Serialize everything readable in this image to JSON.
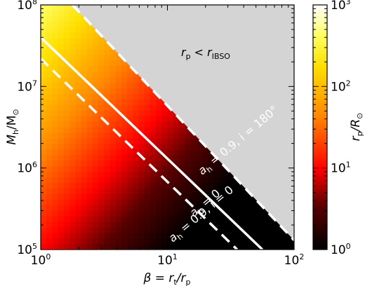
{
  "chart_data": {
    "type": "heatmap",
    "title": "",
    "x_axis": {
      "label_parts": [
        "β = r",
        "t",
        "/r",
        "p"
      ],
      "scale": "log",
      "range": [
        1,
        100
      ],
      "major_ticks": [
        {
          "value": 1,
          "base": "10",
          "exp": "0"
        },
        {
          "value": 10,
          "base": "10",
          "exp": "1"
        },
        {
          "value": 100,
          "base": "10",
          "exp": "2"
        }
      ]
    },
    "y_axis": {
      "label_parts": [
        "M",
        "h",
        "/M",
        "⊙"
      ],
      "scale": "log",
      "range": [
        100000,
        100000000
      ],
      "major_ticks": [
        {
          "value": 100000,
          "base": "10",
          "exp": "5"
        },
        {
          "value": 1000000,
          "base": "10",
          "exp": "6"
        },
        {
          "value": 10000000,
          "base": "10",
          "exp": "7"
        },
        {
          "value": 100000000,
          "base": "10",
          "exp": "8"
        }
      ]
    },
    "colorbar": {
      "label_parts": [
        "r",
        "p",
        "/R",
        "⊙"
      ],
      "scale": "log",
      "range": [
        1,
        1000
      ],
      "colormap": "hot",
      "major_ticks": [
        {
          "value": 1,
          "base": "10",
          "exp": "0"
        },
        {
          "value": 10,
          "base": "10",
          "exp": "1"
        },
        {
          "value": 100,
          "base": "10",
          "exp": "2"
        },
        {
          "value": 1000,
          "base": "10",
          "exp": "3"
        }
      ]
    },
    "excluded_region": {
      "label_parts": [
        "r",
        "p",
        " < r",
        "IBSO"
      ],
      "color": "#d4d4d4"
    },
    "curves": [
      {
        "label_parts": [
          "a",
          "h",
          " = 0.9, i = 0"
        ],
        "style": "dashed",
        "color": "#ffffff",
        "x": [
          1,
          35.5
        ],
        "y": [
          22000000,
          100000
        ]
      },
      {
        "label_parts": [
          "a",
          "h",
          " = 0"
        ],
        "style": "solid",
        "color": "#ffffff",
        "x": [
          1,
          56.2
        ],
        "y": [
          40000000,
          100000
        ]
      },
      {
        "label_parts": [
          "a",
          "h",
          " = 0.9, i = 180°"
        ],
        "style": "dashed",
        "color": "#ffffff",
        "x": [
          1.78,
          100
        ],
        "y": [
          100000000,
          130000
        ]
      }
    ],
    "grid": false,
    "legend": "none"
  }
}
